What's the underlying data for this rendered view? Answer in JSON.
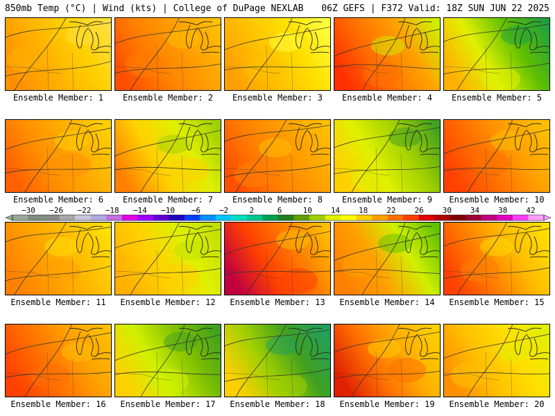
{
  "header": {
    "left": "850mb Temp (°C) | Wind (kts) | College of DuPage NEXLAB",
    "right": "06Z GEFS | F372 Valid: 18Z SUN JUN 22 2025"
  },
  "colorbar": {
    "labels": [
      "-30",
      "-26",
      "-22",
      "-18",
      "-14",
      "-10",
      "-6",
      "-2",
      "2",
      "6",
      "10",
      "14",
      "18",
      "22",
      "26",
      "30",
      "34",
      "38",
      "42"
    ],
    "colors": [
      "#9aa89a",
      "#7f8f7f",
      "#8a8a8a",
      "#a7a7a7",
      "#c7c7d8",
      "#b0a8e0",
      "#c070e0",
      "#e000e0",
      "#a000ff",
      "#6000d0",
      "#2000c0",
      "#0040ff",
      "#0090ff",
      "#00c8ff",
      "#00e0c0",
      "#00c890",
      "#00a050",
      "#208020",
      "#60a000",
      "#a0d000",
      "#e0f000",
      "#ffff00",
      "#ffd000",
      "#ffa000",
      "#ff7000",
      "#ff4000",
      "#e00000",
      "#b00000",
      "#800000",
      "#a00030",
      "#c00080",
      "#e000c0",
      "#ff40ff",
      "#ffa0ff"
    ]
  },
  "members": [
    {
      "label": "Ensemble Member: 1",
      "colors": [
        "#ff9000",
        "#ffb000",
        "#ffd000",
        "#ffe040"
      ]
    },
    {
      "label": "Ensemble Member: 2",
      "colors": [
        "#ff5000",
        "#ff8000",
        "#ffa000",
        "#ffc000"
      ]
    },
    {
      "label": "Ensemble Member: 3",
      "colors": [
        "#ffa000",
        "#ffc000",
        "#ffe000",
        "#ffff40"
      ]
    },
    {
      "label": "Ensemble Member: 4",
      "colors": [
        "#ff3000",
        "#ff7000",
        "#ffa000",
        "#d0f000"
      ]
    },
    {
      "label": "Ensemble Member: 5",
      "colors": [
        "#ffb000",
        "#e0f000",
        "#60c000",
        "#20a040"
      ]
    },
    {
      "label": "Ensemble Member: 6",
      "colors": [
        "#ff6000",
        "#ff9000",
        "#ffb000",
        "#ffd000"
      ]
    },
    {
      "label": "Ensemble Member: 7",
      "colors": [
        "#ff8000",
        "#ffd000",
        "#e0f000",
        "#a0d000"
      ]
    },
    {
      "label": "Ensemble Member: 8",
      "colors": [
        "#ff5000",
        "#ff8000",
        "#ffa000",
        "#ffc000"
      ]
    },
    {
      "label": "Ensemble Member: 9",
      "colors": [
        "#ffd000",
        "#e0f000",
        "#a0d000",
        "#40a020"
      ]
    },
    {
      "label": "Ensemble Member: 10",
      "colors": [
        "#ff4000",
        "#ff7000",
        "#ffa000",
        "#ffc000"
      ]
    },
    {
      "label": "Ensemble Member: 11",
      "colors": [
        "#ff8000",
        "#ffa000",
        "#ffc000",
        "#ffe000"
      ]
    },
    {
      "label": "Ensemble Member: 12",
      "colors": [
        "#ffb000",
        "#ffd000",
        "#e0f000",
        "#c0e000"
      ]
    },
    {
      "label": "Ensemble Member: 13",
      "colors": [
        "#c00040",
        "#ff4000",
        "#ff8000",
        "#ffc000"
      ]
    },
    {
      "label": "Ensemble Member: 14",
      "colors": [
        "#ff8000",
        "#ffa000",
        "#d0f000",
        "#60c000"
      ]
    },
    {
      "label": "Ensemble Member: 15",
      "colors": [
        "#ff4000",
        "#ff8000",
        "#ffc000",
        "#ffe000"
      ]
    },
    {
      "label": "Ensemble Member: 16",
      "colors": [
        "#ff4000",
        "#ff7000",
        "#ffa000",
        "#ffc000"
      ]
    },
    {
      "label": "Ensemble Member: 17",
      "colors": [
        "#ffd000",
        "#d0f000",
        "#80c000",
        "#40a020"
      ]
    },
    {
      "label": "Ensemble Member: 18",
      "colors": [
        "#ffd000",
        "#a0d000",
        "#40a020",
        "#20a060"
      ]
    },
    {
      "label": "Ensemble Member: 19",
      "colors": [
        "#e02000",
        "#ff7000",
        "#ffb000",
        "#ffd000"
      ]
    },
    {
      "label": "Ensemble Member: 20",
      "colors": [
        "#ff9000",
        "#ffc000",
        "#ffe000",
        "#e0f000"
      ]
    }
  ]
}
